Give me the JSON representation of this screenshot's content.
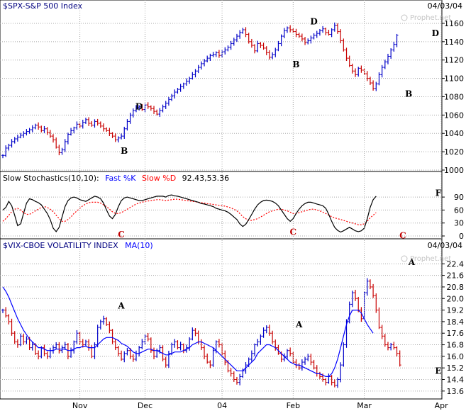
{
  "colors": {
    "up": "#0000c8",
    "down": "#c80000",
    "blue_line": "#0000ff",
    "red_line": "#ff0000",
    "grid": "#a8a8a8",
    "marker_red": "#c00000"
  },
  "watermark": "Prophet.net",
  "chart_data": [
    {
      "type": "ohlc",
      "title": "$SPX-S&P 500 Index",
      "date": "04/03/04",
      "ylim": [
        1000,
        1170
      ],
      "yticks": [
        1000,
        1020,
        1040,
        1060,
        1080,
        1100,
        1120,
        1140,
        1160
      ],
      "ohlc_close": [
        1016,
        1024,
        1027,
        1031,
        1034,
        1036,
        1038,
        1040,
        1042,
        1044,
        1046,
        1049,
        1047,
        1043,
        1045,
        1041,
        1037,
        1033,
        1025,
        1019,
        1022,
        1031,
        1039,
        1043,
        1046,
        1050,
        1048,
        1052,
        1055,
        1051,
        1049,
        1053,
        1051,
        1048,
        1045,
        1043,
        1040,
        1037,
        1033,
        1035,
        1037,
        1045,
        1053,
        1060,
        1065,
        1068,
        1069,
        1066,
        1071,
        1069,
        1067,
        1064,
        1061,
        1065,
        1069,
        1073,
        1077,
        1081,
        1085,
        1088,
        1091,
        1094,
        1097,
        1100,
        1104,
        1108,
        1112,
        1116,
        1119,
        1122,
        1125,
        1126,
        1128,
        1125,
        1129,
        1131,
        1134,
        1138,
        1142,
        1146,
        1150,
        1153,
        1148,
        1140,
        1136,
        1130,
        1138,
        1136,
        1133,
        1128,
        1123,
        1126,
        1131,
        1138,
        1146,
        1152,
        1155,
        1153,
        1151,
        1148,
        1146,
        1143,
        1139,
        1141,
        1144,
        1147,
        1149,
        1152,
        1154,
        1150,
        1148,
        1153,
        1158,
        1151,
        1141,
        1131,
        1122,
        1114,
        1108,
        1104,
        1111,
        1109,
        1105,
        1100,
        1095,
        1089,
        1094,
        1104,
        1112,
        1118,
        1124,
        1131,
        1137,
        1147
      ],
      "markers": [
        {
          "text": "D",
          "x": 46,
          "y": 1069
        },
        {
          "text": "B",
          "x": 41,
          "y": 1021
        },
        {
          "text": "B",
          "x": 99,
          "y": 1115
        },
        {
          "text": "D",
          "x": 105,
          "y": 1162
        },
        {
          "text": "B",
          "x": 137,
          "y": 1083
        },
        {
          "text": "D",
          "x": 146,
          "y": 1149
        }
      ]
    },
    {
      "type": "line",
      "title": "Slow Stochastics(10,10):",
      "legend": [
        "Fast %K",
        "Slow %D"
      ],
      "readout": "92.43,53.36",
      "ylim": [
        0,
        100
      ],
      "yticks": [
        0,
        30,
        60,
        90
      ],
      "series": [
        {
          "name": "Fast %K",
          "values": [
            60,
            66,
            80,
            70,
            48,
            24,
            28,
            52,
            76,
            86,
            84,
            80,
            77,
            72,
            62,
            52,
            38,
            18,
            10,
            20,
            44,
            68,
            82,
            88,
            90,
            88,
            84,
            82,
            80,
            84,
            88,
            92,
            90,
            86,
            76,
            60,
            46,
            40,
            50,
            68,
            82,
            88,
            90,
            88,
            86,
            84,
            82,
            82,
            84,
            86,
            88,
            90,
            92,
            92,
            92,
            90,
            94,
            95,
            93,
            92,
            90,
            88,
            86,
            84,
            82,
            80,
            78,
            75,
            74,
            72,
            70,
            68,
            64,
            62,
            60,
            58,
            55,
            50,
            44,
            38,
            28,
            22,
            27,
            38,
            50,
            62,
            72,
            78,
            82,
            83,
            82,
            80,
            76,
            70,
            60,
            50,
            40,
            34,
            40,
            52,
            62,
            70,
            75,
            78,
            78,
            76,
            74,
            72,
            70,
            64,
            50,
            34,
            20,
            13,
            9,
            12,
            16,
            20,
            16,
            12,
            10,
            12,
            18,
            40,
            66,
            84,
            92
          ]
        },
        {
          "name": "Slow %D",
          "values": [
            34,
            40,
            48,
            56,
            62,
            64,
            60,
            54,
            50,
            50,
            54,
            58,
            62,
            66,
            68,
            66,
            62,
            56,
            48,
            40,
            34,
            34,
            38,
            44,
            52,
            58,
            64,
            70,
            74,
            77,
            78,
            78,
            78,
            76,
            72,
            68,
            62,
            56,
            52,
            52,
            54,
            58,
            62,
            66,
            70,
            74,
            76,
            78,
            80,
            81,
            82,
            83,
            84,
            84,
            83,
            82,
            83,
            84,
            85,
            85,
            84,
            83,
            82,
            81,
            80,
            79,
            78,
            77,
            76,
            75,
            74,
            73,
            72,
            71,
            70,
            69,
            67,
            65,
            62,
            58,
            52,
            45,
            40,
            36,
            36,
            38,
            40,
            44,
            48,
            52,
            56,
            58,
            60,
            62,
            62,
            60,
            58,
            55,
            52,
            52,
            54,
            56,
            58,
            60,
            62,
            62,
            60,
            58,
            55,
            52,
            48,
            45,
            42,
            40,
            38,
            36,
            34,
            32,
            30,
            28,
            26,
            26,
            28,
            34,
            42,
            48,
            54
          ]
        }
      ],
      "markers": [
        {
          "text": "C",
          "x": 40,
          "y": 3
        },
        {
          "text": "C",
          "x": 98,
          "y": 9
        },
        {
          "text": "C",
          "x": 135,
          "y": 1
        },
        {
          "text": "F",
          "x": 147,
          "y": 99
        }
      ]
    },
    {
      "type": "ohlc",
      "title": "$VIX-CBOE VOLATILITY INDEX",
      "legend": [
        "MA(10)"
      ],
      "date": "04/03/04",
      "ylim": [
        13.2,
        23.1
      ],
      "yticks": [
        13.6,
        14.4,
        15.2,
        16.0,
        16.8,
        17.6,
        18.4,
        19.2,
        20.0,
        20.8,
        21.6,
        22.4
      ],
      "ohlc_close": [
        19.2,
        18.8,
        18.4,
        17.6,
        17.0,
        16.8,
        17.4,
        17.0,
        17.2,
        16.6,
        16.8,
        16.2,
        16.0,
        16.6,
        16.2,
        16.0,
        16.4,
        16.6,
        16.8,
        16.4,
        16.6,
        16.8,
        16.0,
        16.4,
        17.0,
        17.6,
        17.0,
        16.8,
        17.0,
        16.6,
        16.0,
        16.8,
        18.0,
        18.4,
        18.6,
        18.2,
        17.8,
        17.0,
        16.6,
        16.2,
        15.8,
        16.2,
        16.4,
        16.0,
        15.8,
        16.2,
        16.6,
        17.0,
        17.4,
        17.2,
        16.4,
        16.0,
        16.4,
        16.6,
        15.8,
        15.4,
        16.2,
        16.8,
        17.0,
        16.6,
        16.8,
        16.4,
        16.6,
        17.2,
        17.8,
        17.6,
        17.0,
        16.6,
        16.0,
        15.6,
        15.4,
        16.4,
        17.0,
        16.8,
        16.2,
        15.6,
        15.0,
        14.8,
        14.4,
        14.2,
        14.6,
        15.0,
        15.4,
        15.8,
        16.2,
        16.8,
        17.0,
        17.4,
        17.8,
        18.0,
        17.6,
        17.0,
        16.6,
        16.2,
        15.8,
        16.0,
        16.4,
        16.2,
        15.6,
        15.4,
        15.2,
        15.6,
        15.8,
        16.0,
        15.6,
        15.2,
        14.8,
        14.6,
        14.4,
        14.2,
        14.6,
        14.2,
        14.0,
        14.4,
        15.4,
        16.8,
        18.4,
        19.6,
        20.4,
        20.0,
        19.2,
        18.6,
        20.4,
        21.2,
        20.8,
        20.2,
        19.2,
        18.0,
        17.4,
        16.8,
        16.6,
        16.8,
        16.6,
        16.2,
        15.4
      ],
      "ma10": [
        20.8,
        20.5,
        20.1,
        19.6,
        19.1,
        18.6,
        18.2,
        17.8,
        17.5,
        17.2,
        17.0,
        16.8,
        16.6,
        16.6,
        16.5,
        16.4,
        16.4,
        16.4,
        16.5,
        16.5,
        16.5,
        16.5,
        16.4,
        16.4,
        16.5,
        16.6,
        16.6,
        16.7,
        16.7,
        16.6,
        16.6,
        16.6,
        16.8,
        17.0,
        17.2,
        17.3,
        17.3,
        17.3,
        17.2,
        17.1,
        16.9,
        16.8,
        16.7,
        16.5,
        16.3,
        16.2,
        16.2,
        16.3,
        16.4,
        16.5,
        16.5,
        16.4,
        16.4,
        16.3,
        16.2,
        16.1,
        16.1,
        16.2,
        16.3,
        16.3,
        16.3,
        16.4,
        16.5,
        16.6,
        16.8,
        16.9,
        17.0,
        17.0,
        16.9,
        16.8,
        16.7,
        16.6,
        16.4,
        16.2,
        16.0,
        15.8,
        15.6,
        15.4,
        15.2,
        15.0,
        15.0,
        15.0,
        15.2,
        15.4,
        15.6,
        15.8,
        16.2,
        16.4,
        16.6,
        16.8,
        16.8,
        16.7,
        16.6,
        16.4,
        16.2,
        16.0,
        15.8,
        15.6,
        15.5,
        15.4,
        15.4,
        15.3,
        15.2,
        15.1,
        15.0,
        14.9,
        14.8,
        14.8,
        14.7,
        14.6,
        14.6,
        14.8,
        15.2,
        15.8,
        16.6,
        17.4,
        18.2,
        18.8,
        19.2,
        19.2,
        19.2,
        19.0,
        18.6,
        18.2,
        17.9,
        17.6
      ]
    }
  ],
  "vix_markers": [
    {
      "text": "A",
      "x": 40,
      "y": 19.5
    },
    {
      "text": "A",
      "x": 100,
      "y": 18.2
    },
    {
      "text": "A",
      "x": 138,
      "y": 22.5
    },
    {
      "text": "E",
      "x": 147,
      "y": 15.0
    }
  ],
  "x_axis": {
    "ticks": [
      {
        "label": "Nov",
        "x": 26
      },
      {
        "label": "Dec",
        "x": 48
      },
      {
        "label": "04",
        "x": 74
      },
      {
        "label": "Feb",
        "x": 98
      },
      {
        "label": "Mar",
        "x": 122
      },
      {
        "label": "Apr",
        "x": 148
      }
    ]
  }
}
